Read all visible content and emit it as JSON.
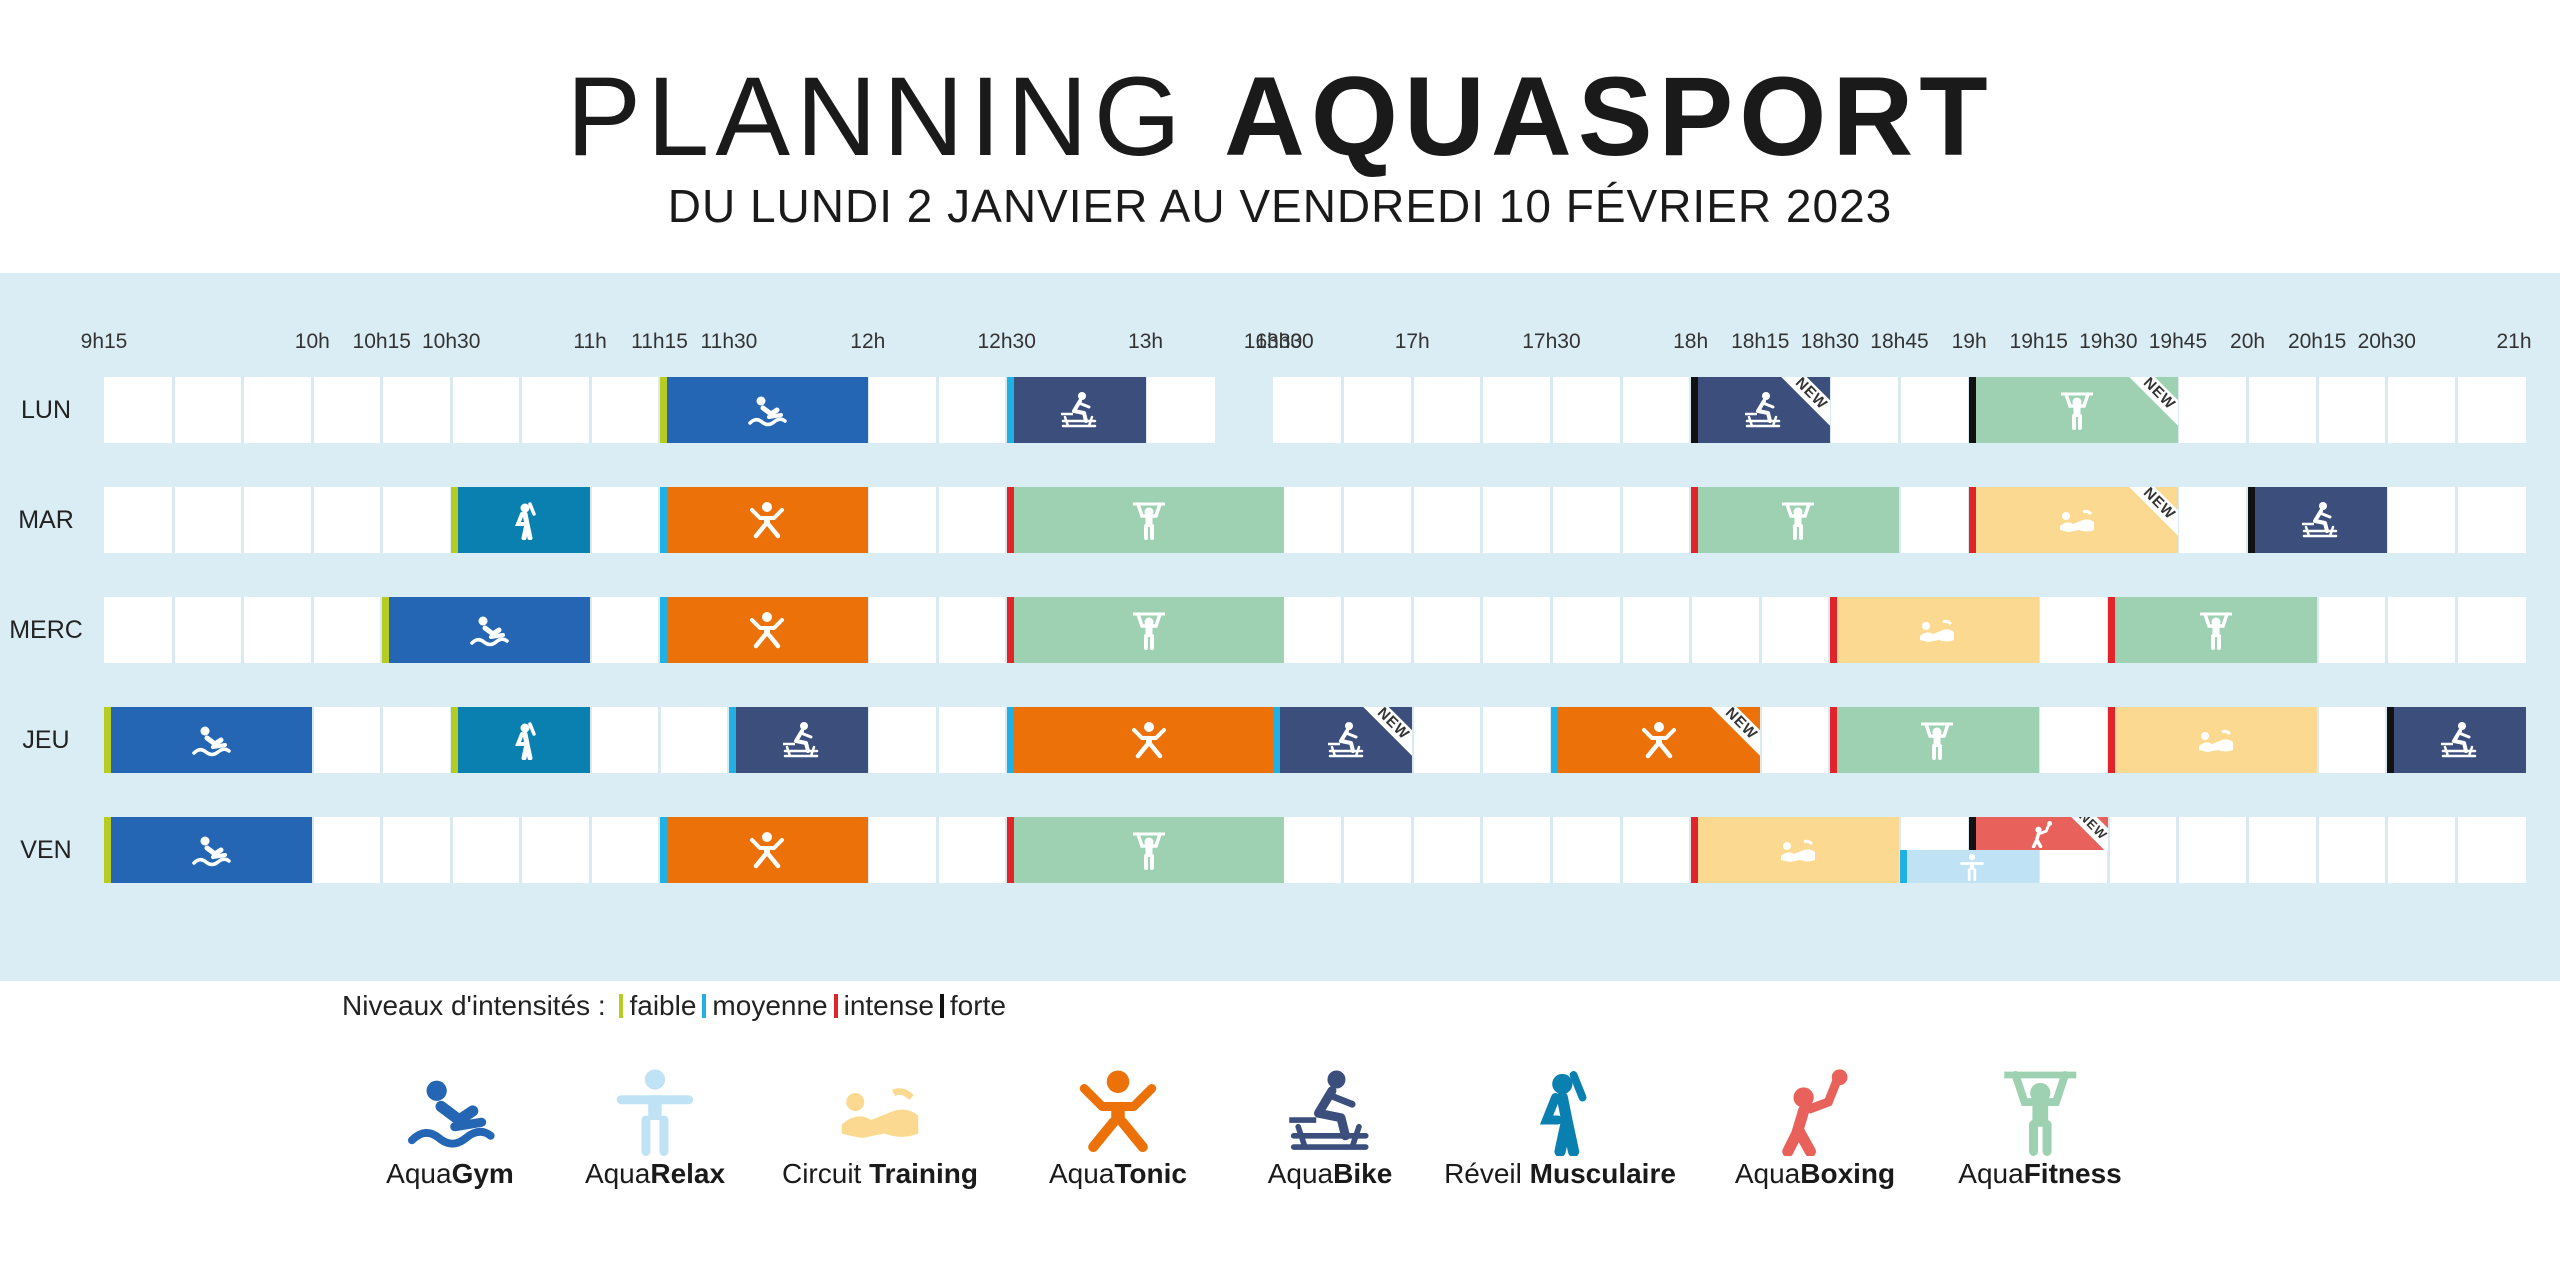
{
  "header": {
    "title_light": "PLANNING ",
    "title_bold": "AQUASPORT",
    "subtitle": "DU LUNDI 2 JANVIER AU VENDREDI 10 FÉVRIER 2023"
  },
  "time_ticks": [
    "9h15",
    "10h",
    "10h15",
    "10h30",
    "11h",
    "11h15",
    "11h30",
    "12h",
    "12h30",
    "13h",
    "13h30",
    "16h30",
    "17h",
    "17h30",
    "18h",
    "18h15",
    "18h30",
    "18h45",
    "19h",
    "19h15",
    "19h30",
    "19h45",
    "20h",
    "20h15",
    "20h30",
    "21h"
  ],
  "days": [
    "LUN",
    "MAR",
    "MERC",
    "JEU",
    "VEN"
  ],
  "new_label": "NEW",
  "colors": {
    "gym": "#2466b3",
    "relax": "#bfe3f5",
    "training": "#fbd990",
    "tonic": "#ec7108",
    "bike": "#3b4e7c",
    "reveil": "#0a80b0",
    "boxing": "#e8615b",
    "fitness": "#9dd1b2",
    "faible": "#b6cc22",
    "moyenne": "#21b0e4",
    "intense": "#e0242a",
    "forte": "#111111"
  },
  "legend": {
    "levels_label": "Niveaux d'intensités :",
    "levels": [
      {
        "key": "faible",
        "label": "faible"
      },
      {
        "key": "moyenne",
        "label": "moyenne"
      },
      {
        "key": "intense",
        "label": "intense"
      },
      {
        "key": "forte",
        "label": "forte"
      }
    ],
    "activities": [
      {
        "key": "gym",
        "prefix": "Aqua",
        "bold": "Gym",
        "icon": "swimmer-icon"
      },
      {
        "key": "relax",
        "prefix": "Aqua",
        "bold": "Relax",
        "icon": "relax-figure-icon"
      },
      {
        "key": "training",
        "prefix": "Circuit ",
        "bold": "Training",
        "icon": "circuit-training-icon"
      },
      {
        "key": "tonic",
        "prefix": "Aqua",
        "bold": "Tonic",
        "icon": "jumping-figure-icon"
      },
      {
        "key": "bike",
        "prefix": "Aqua",
        "bold": "Bike",
        "icon": "cyclist-icon"
      },
      {
        "key": "reveil",
        "prefix": "Réveil ",
        "bold": "Musculaire",
        "icon": "stretching-figure-icon"
      },
      {
        "key": "boxing",
        "prefix": "Aqua",
        "bold": "Boxing",
        "icon": "boxer-icon"
      },
      {
        "key": "fitness",
        "prefix": "Aqua",
        "bold": "Fitness",
        "icon": "weightlifter-icon"
      }
    ]
  },
  "sessions": [
    {
      "day": "LUN",
      "start": "11h15",
      "end": "12h",
      "activity": "gym",
      "level": "faible"
    },
    {
      "day": "LUN",
      "start": "12h30",
      "end": "13h",
      "activity": "bike",
      "level": "moyenne"
    },
    {
      "day": "LUN",
      "start": "18h",
      "end": "18h30",
      "activity": "bike",
      "level": "forte",
      "new": true
    },
    {
      "day": "LUN",
      "start": "19h",
      "end": "19h45",
      "activity": "fitness",
      "level": "forte",
      "new": true
    },
    {
      "day": "MAR",
      "start": "10h30",
      "end": "11h",
      "activity": "reveil",
      "level": "faible"
    },
    {
      "day": "MAR",
      "start": "11h15",
      "end": "12h",
      "activity": "tonic",
      "level": "moyenne"
    },
    {
      "day": "MAR",
      "start": "12h30",
      "end": "13h30",
      "activity": "fitness",
      "level": "intense"
    },
    {
      "day": "MAR",
      "start": "18h",
      "end": "18h45",
      "activity": "fitness",
      "level": "intense"
    },
    {
      "day": "MAR",
      "start": "19h",
      "end": "19h45",
      "activity": "training",
      "level": "intense",
      "new": true
    },
    {
      "day": "MAR",
      "start": "20h",
      "end": "20h30",
      "activity": "bike",
      "level": "forte"
    },
    {
      "day": "MERC",
      "start": "10h15",
      "end": "11h",
      "activity": "gym",
      "level": "faible"
    },
    {
      "day": "MERC",
      "start": "11h15",
      "end": "12h",
      "activity": "tonic",
      "level": "moyenne"
    },
    {
      "day": "MERC",
      "start": "12h30",
      "end": "13h30",
      "activity": "fitness",
      "level": "intense"
    },
    {
      "day": "MERC",
      "start": "18h30",
      "end": "19h15",
      "activity": "training",
      "level": "intense"
    },
    {
      "day": "MERC",
      "start": "19h30",
      "end": "20h15",
      "activity": "fitness",
      "level": "intense"
    },
    {
      "day": "JEU",
      "start": "9h15",
      "end": "10h",
      "activity": "gym",
      "level": "faible"
    },
    {
      "day": "JEU",
      "start": "10h30",
      "end": "11h",
      "activity": "reveil",
      "level": "faible"
    },
    {
      "day": "JEU",
      "start": "11h30",
      "end": "12h",
      "activity": "bike",
      "level": "moyenne"
    },
    {
      "day": "JEU",
      "start": "12h30",
      "end": "13h30",
      "activity": "tonic",
      "level": "moyenne"
    },
    {
      "day": "JEU",
      "start": "16h30",
      "end": "17h",
      "activity": "bike",
      "level": "moyenne",
      "new": true
    },
    {
      "day": "JEU",
      "start": "17h30",
      "end": "18h15",
      "activity": "tonic",
      "level": "moyenne",
      "new": true
    },
    {
      "day": "JEU",
      "start": "18h30",
      "end": "19h15",
      "activity": "fitness",
      "level": "intense"
    },
    {
      "day": "JEU",
      "start": "19h30",
      "end": "20h15",
      "activity": "training",
      "level": "intense"
    },
    {
      "day": "JEU",
      "start": "20h30",
      "end": "21h",
      "activity": "bike",
      "level": "forte"
    },
    {
      "day": "VEN",
      "start": "9h15",
      "end": "10h",
      "activity": "gym",
      "level": "faible"
    },
    {
      "day": "VEN",
      "start": "11h15",
      "end": "12h",
      "activity": "tonic",
      "level": "moyenne"
    },
    {
      "day": "VEN",
      "start": "12h30",
      "end": "13h30",
      "activity": "fitness",
      "level": "intense"
    },
    {
      "day": "VEN",
      "start": "18h",
      "end": "18h45",
      "activity": "training",
      "level": "intense"
    },
    {
      "day": "VEN",
      "start": "19h",
      "end": "19h30",
      "activity": "boxing",
      "level": "forte",
      "new": true,
      "half": "top"
    },
    {
      "day": "VEN",
      "start": "18h45",
      "end": "19h15",
      "activity": "relax",
      "level": "moyenne",
      "half": "bottom"
    }
  ]
}
